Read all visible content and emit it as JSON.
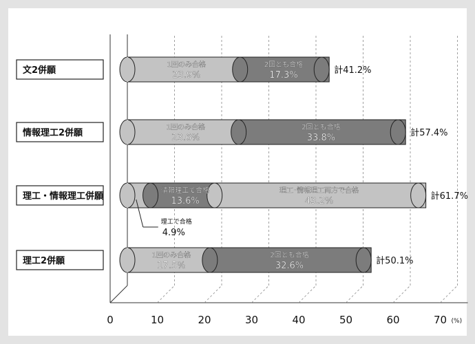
{
  "chart_data": {
    "type": "bar",
    "stacked": true,
    "orientation": "horizontal",
    "unit": "(%)",
    "xlim": [
      0,
      70
    ],
    "x_ticks": [
      0,
      10,
      20,
      30,
      40,
      50,
      60,
      70
    ],
    "grid": "dashed-vertical",
    "categories": [
      {
        "label": "文2併願",
        "total_label": "計41.2%",
        "segments": [
          {
            "name": "1回のみ合格",
            "value": 23.9,
            "value_label": "23.9%",
            "color": "#c3c3c3"
          },
          {
            "name": "2回とも合格",
            "value": 17.3,
            "value_label": "17.3%",
            "color": "#7c7c7c"
          }
        ]
      },
      {
        "label": "情報理工2併願",
        "total_label": "計57.4%",
        "segments": [
          {
            "name": "1回のみ合格",
            "value": 23.6,
            "value_label": "23.6%",
            "color": "#c3c3c3"
          },
          {
            "name": "2回とも合格",
            "value": 33.8,
            "value_label": "33.8%",
            "color": "#7c7c7c"
          }
        ]
      },
      {
        "label": "理工・情報理工併願",
        "total_label": "計61.7%",
        "segments": [
          {
            "name": "理工で合格",
            "value": 4.9,
            "value_label": "4.9%",
            "color": "#c3c3c3",
            "callout": true
          },
          {
            "name": "情報理工で合格",
            "value": 13.6,
            "value_label": "13.6%",
            "color": "#7c7c7c"
          },
          {
            "name": "理工･情報理工両方で合格",
            "value": 43.2,
            "value_label": "43.2%",
            "color": "#c3c3c3"
          }
        ]
      },
      {
        "label": "理工2併願",
        "total_label": "計50.1%",
        "segments": [
          {
            "name": "1回のみ合格",
            "value": 17.5,
            "value_label": "17.5%",
            "color": "#c3c3c3"
          },
          {
            "name": "2回とも合格",
            "value": 32.6,
            "value_label": "32.6%",
            "color": "#7c7c7c"
          }
        ]
      }
    ]
  }
}
